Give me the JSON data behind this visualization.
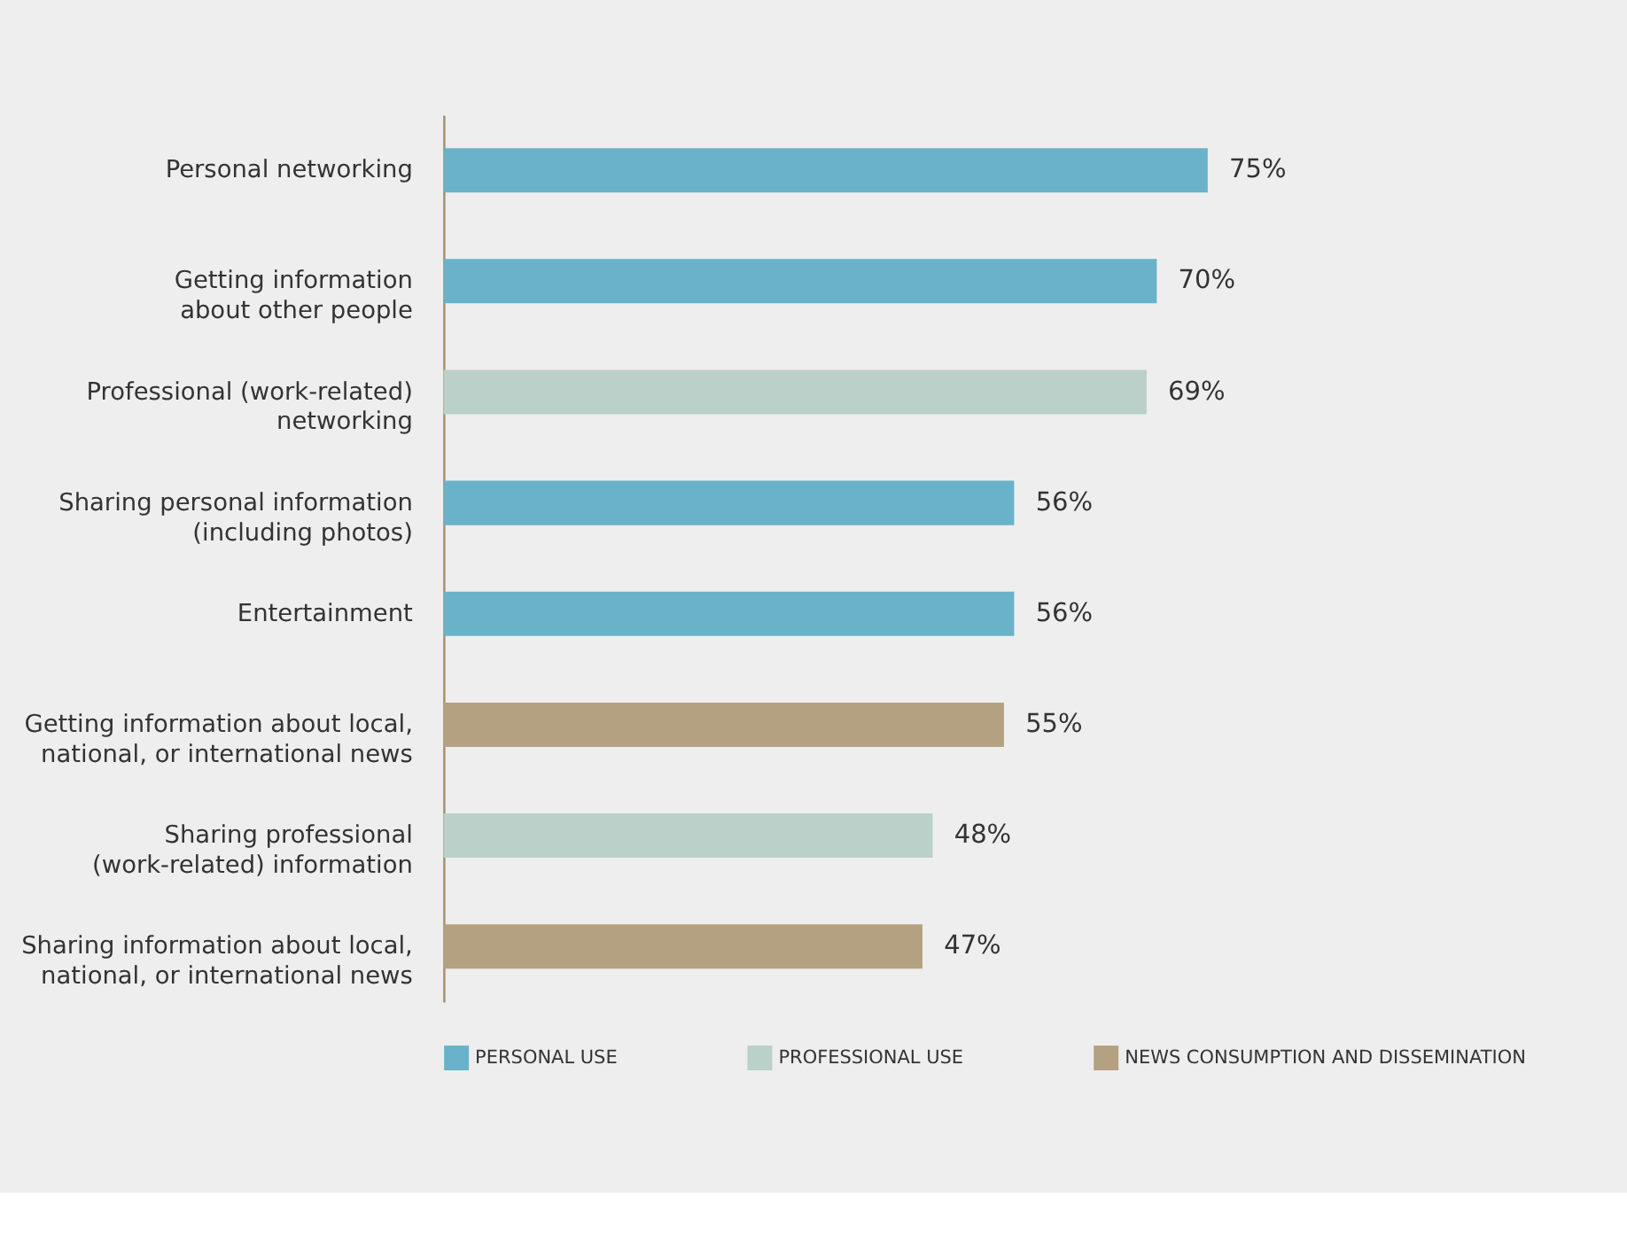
{
  "chart_data": {
    "type": "bar",
    "orientation": "horizontal",
    "legend": "bottom",
    "tick_labels": "y",
    "categories": [
      "Personal networking",
      "Getting information\nabout other people",
      "Professional  (work-related)\nnetworking",
      "Sharing personal information\n(including photos)",
      "Entertainment",
      "Getting information about local,\nnational, or international news",
      "Sharing professional\n(work-related) information",
      "Sharing  information about local,\nnational, or international news"
    ],
    "series": [
      {
        "name": "PERSONAL USE",
        "color": "#6ab2c9",
        "values": [
          75,
          70,
          null,
          56,
          56,
          null,
          null,
          null
        ],
        "value_labels": [
          "75%",
          "70%",
          null,
          "56%",
          "56%",
          null,
          null,
          null
        ]
      },
      {
        "name": "PROFESSIONAL USE",
        "color": "#bad0c8",
        "values": [
          null,
          null,
          69,
          null,
          null,
          null,
          48,
          null
        ],
        "value_labels": [
          null,
          null,
          "69%",
          null,
          null,
          null,
          "48%",
          null
        ]
      },
      {
        "name": "NEWS CONSUMPTION AND DISSEMINATION",
        "color": "#b4a182",
        "values": [
          null,
          null,
          null,
          null,
          null,
          55,
          null,
          47
        ],
        "value_labels": [
          null,
          null,
          null,
          null,
          null,
          "55%",
          null,
          "47%"
        ]
      }
    ]
  }
}
